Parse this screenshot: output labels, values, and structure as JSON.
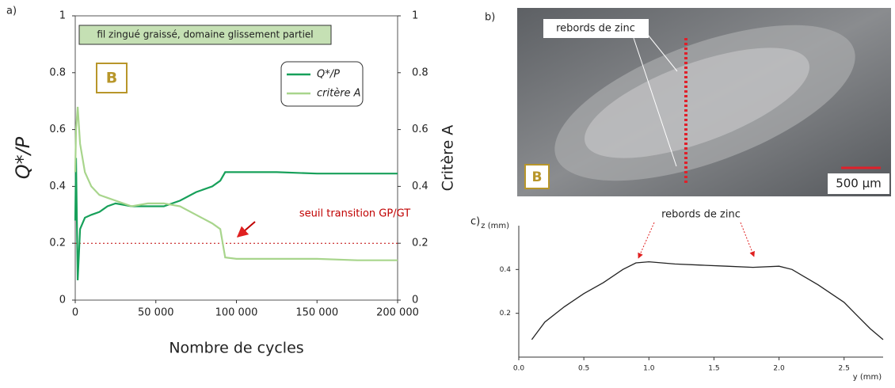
{
  "chart_data": [
    {
      "type": "line",
      "panel_label": "a)",
      "annotation_box": "fil zingué graissé, domaine glissement partiel",
      "marker": "B",
      "xlabel": "Nombre de cycles",
      "ylabel": "Q*/P",
      "y2label": "Critère A",
      "x": [
        0,
        500,
        1500,
        3000,
        6000,
        10000,
        15000,
        20000,
        25000,
        35000,
        45000,
        55000,
        65000,
        75000,
        85000,
        90000,
        93000,
        100000,
        125000,
        150000,
        175000,
        200000
      ],
      "series": [
        {
          "name": "Q*/P",
          "color": "#17a05a",
          "values": [
            0.28,
            0.5,
            0.07,
            0.25,
            0.29,
            0.3,
            0.31,
            0.33,
            0.34,
            0.33,
            0.33,
            0.33,
            0.35,
            0.38,
            0.4,
            0.42,
            0.45,
            0.45,
            0.45,
            0.445,
            0.445,
            0.445
          ]
        },
        {
          "name": "critère A",
          "color": "#a8d58c",
          "axis": "y2",
          "values": [
            0.45,
            0.6,
            0.68,
            0.55,
            0.45,
            0.4,
            0.37,
            0.36,
            0.35,
            0.33,
            0.34,
            0.34,
            0.33,
            0.3,
            0.27,
            0.25,
            0.15,
            0.145,
            0.145,
            0.145,
            0.14,
            0.14
          ]
        }
      ],
      "threshold": {
        "value": 0.2,
        "label": "seuil transition GP/GT",
        "color": "#c00000"
      },
      "xlim": [
        0,
        200000
      ],
      "xticks": [
        0,
        {
          "value": 50000,
          "label": "50 000"
        },
        {
          "value": 100000,
          "label": "100 000"
        },
        {
          "value": 150000,
          "label": "150 000"
        },
        {
          "value": 200000,
          "label": "200 000"
        }
      ],
      "ylim": [
        0,
        1
      ],
      "yticks": [
        0,
        0.2,
        0.4,
        0.6,
        0.8,
        1
      ],
      "y2lim": [
        0,
        1
      ],
      "y2ticks": [
        0,
        0.2,
        0.4,
        0.6,
        0.8,
        1
      ],
      "legend": "upper right"
    },
    {
      "type": "line",
      "panel_label": "c)",
      "annotation": "rebords de zinc",
      "xlabel": "y (mm)",
      "ylabel": "z (mm)",
      "x": [
        0.1,
        0.2,
        0.35,
        0.5,
        0.65,
        0.8,
        0.9,
        1.0,
        1.2,
        1.4,
        1.6,
        1.8,
        2.0,
        2.1,
        2.3,
        2.5,
        2.6,
        2.7,
        2.8
      ],
      "series": [
        {
          "name": null,
          "color": "#222222",
          "values": [
            0.08,
            0.16,
            0.23,
            0.29,
            0.34,
            0.4,
            0.43,
            0.435,
            0.425,
            0.42,
            0.415,
            0.41,
            0.415,
            0.4,
            0.33,
            0.25,
            0.19,
            0.13,
            0.08
          ]
        }
      ],
      "xlim": [
        0,
        2.8
      ],
      "xticks": [
        {
          "value": 0,
          "label": "0.0"
        },
        0.5,
        {
          "value": 1,
          "label": "1.0"
        },
        1.5,
        {
          "value": 2,
          "label": "2.0"
        },
        2.5
      ],
      "ylim": [
        0,
        0.6
      ],
      "yticks": [
        0.2,
        0.4
      ]
    }
  ],
  "photo": {
    "panel_label": "b)",
    "annotation": "rebords de zinc",
    "marker": "B",
    "scale_bar": "500 µm"
  }
}
